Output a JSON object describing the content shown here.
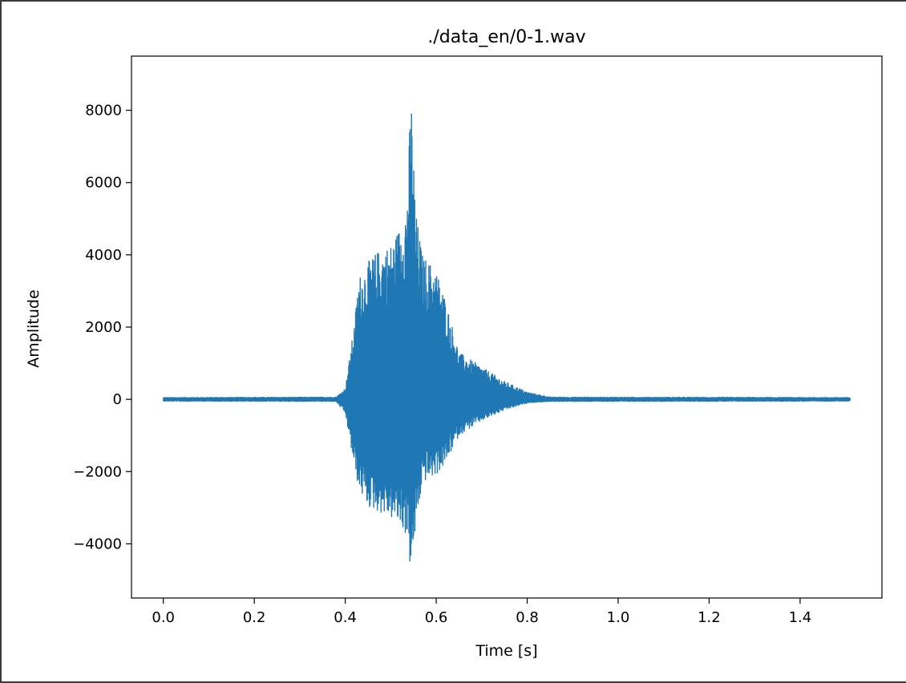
{
  "chart_data": {
    "type": "line",
    "title": "./data_en/0-1.wav",
    "xlabel": "Time [s]",
    "ylabel": "Amplitude",
    "xlim": [
      -0.07,
      1.58
    ],
    "ylim": [
      -5500,
      9500
    ],
    "xticks": [
      0.0,
      0.2,
      0.4,
      0.6,
      0.8,
      1.0,
      1.2,
      1.4
    ],
    "xtick_labels": [
      "0.0",
      "0.2",
      "0.4",
      "0.6",
      "0.8",
      "1.0",
      "1.2",
      "1.4"
    ],
    "yticks": [
      -4000,
      -2000,
      0,
      2000,
      4000,
      6000,
      8000
    ],
    "ytick_labels": [
      "−4000",
      "−2000",
      "0",
      "2000",
      "4000",
      "6000",
      "8000"
    ],
    "grid": false,
    "duration": 1.51,
    "series": [
      {
        "color": "#1f77b4",
        "envelope": [
          {
            "t": 0.0,
            "max": 50,
            "min": -50
          },
          {
            "t": 0.38,
            "max": 60,
            "min": -60
          },
          {
            "t": 0.4,
            "max": 300,
            "min": -400
          },
          {
            "t": 0.42,
            "max": 2100,
            "min": -1900
          },
          {
            "t": 0.43,
            "max": 3400,
            "min": -2500
          },
          {
            "t": 0.45,
            "max": 3800,
            "min": -3000
          },
          {
            "t": 0.47,
            "max": 4100,
            "min": -3100
          },
          {
            "t": 0.5,
            "max": 4300,
            "min": -3300
          },
          {
            "t": 0.52,
            "max": 4800,
            "min": -3500
          },
          {
            "t": 0.535,
            "max": 5500,
            "min": -3800
          },
          {
            "t": 0.545,
            "max": 8500,
            "min": -4900
          },
          {
            "t": 0.555,
            "max": 5200,
            "min": -3600
          },
          {
            "t": 0.57,
            "max": 4000,
            "min": -2300
          },
          {
            "t": 0.6,
            "max": 3600,
            "min": -2100
          },
          {
            "t": 0.62,
            "max": 2800,
            "min": -1800
          },
          {
            "t": 0.65,
            "max": 1300,
            "min": -1000
          },
          {
            "t": 0.7,
            "max": 900,
            "min": -600
          },
          {
            "t": 0.75,
            "max": 500,
            "min": -300
          },
          {
            "t": 0.8,
            "max": 200,
            "min": -100
          },
          {
            "t": 0.85,
            "max": 60,
            "min": -60
          },
          {
            "t": 1.51,
            "max": 50,
            "min": -50
          }
        ]
      }
    ]
  }
}
